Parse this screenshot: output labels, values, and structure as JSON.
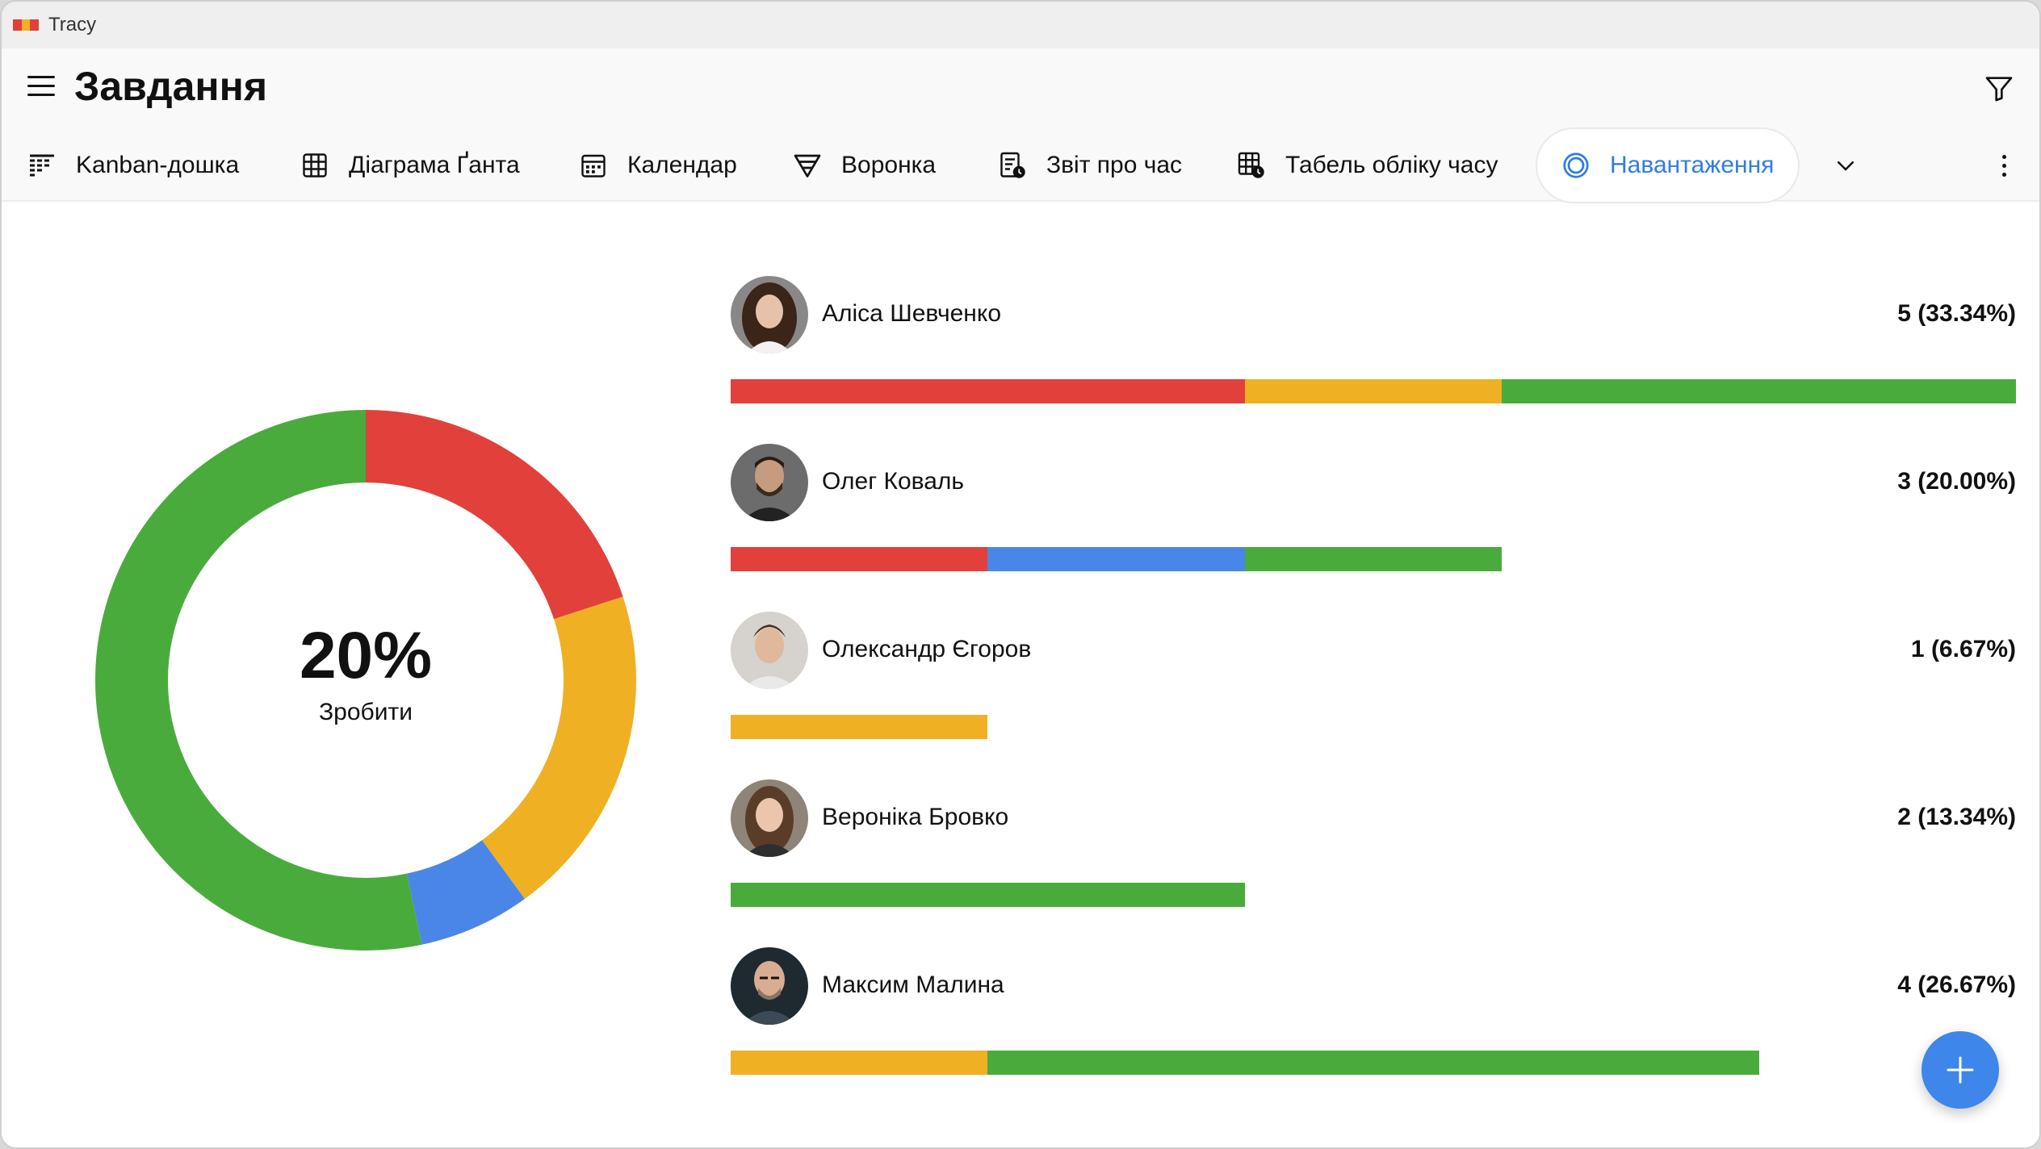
{
  "window": {
    "title": "Tracy"
  },
  "header": {
    "title": "Завдання"
  },
  "tabs": [
    {
      "label": "Kanban-дошка",
      "icon": "kanban-icon"
    },
    {
      "label": "Діаграма Ґанта",
      "icon": "gantt-icon"
    },
    {
      "label": "Календар",
      "icon": "calendar-icon"
    },
    {
      "label": "Воронка",
      "icon": "funnel-icon"
    },
    {
      "label": "Звіт про час",
      "icon": "time-report-icon"
    },
    {
      "label": "Табель обліку часу",
      "icon": "timesheet-icon"
    },
    {
      "label": "Навантаження",
      "icon": "workload-icon",
      "active": true
    }
  ],
  "colors": {
    "todo": "#e2403a",
    "in_progress": "#4a86e8",
    "review": "#f0b024",
    "done": "#4aab3d",
    "accent": "#2f7de1"
  },
  "chart_data": {
    "type": "pie",
    "center_value": "20%",
    "center_label": "Зробити",
    "slices": [
      {
        "color": "#e2403a",
        "value": 20
      },
      {
        "color": "#f0b024",
        "value": 20
      },
      {
        "color": "#4a86e8",
        "value": 6.67
      },
      {
        "color": "#4aab3d",
        "value": 53.33
      }
    ]
  },
  "users": [
    {
      "name": "Аліса Шевченко",
      "count": "5 (33.34%)",
      "segments": [
        {
          "color": "#e2403a",
          "value": 2
        },
        {
          "color": "#f0b024",
          "value": 1
        },
        {
          "color": "#4aab3d",
          "value": 2
        }
      ]
    },
    {
      "name": "Олег Коваль",
      "count": "3 (20.00%)",
      "segments": [
        {
          "color": "#e2403a",
          "value": 1
        },
        {
          "color": "#4a86e8",
          "value": 1
        },
        {
          "color": "#4aab3d",
          "value": 1
        }
      ]
    },
    {
      "name": "Олександр Єгоров",
      "count": "1 (6.67%)",
      "segments": [
        {
          "color": "#f0b024",
          "value": 1
        }
      ]
    },
    {
      "name": "Вероніка Бровко",
      "count": "2 (13.34%)",
      "segments": [
        {
          "color": "#4aab3d",
          "value": 2
        }
      ]
    },
    {
      "name": "Максим Малина",
      "count": "4 (26.67%)",
      "segments": [
        {
          "color": "#f0b024",
          "value": 1
        },
        {
          "color": "#4aab3d",
          "value": 3
        }
      ]
    }
  ],
  "max_count": 5,
  "fab": {
    "icon": "plus-icon"
  }
}
